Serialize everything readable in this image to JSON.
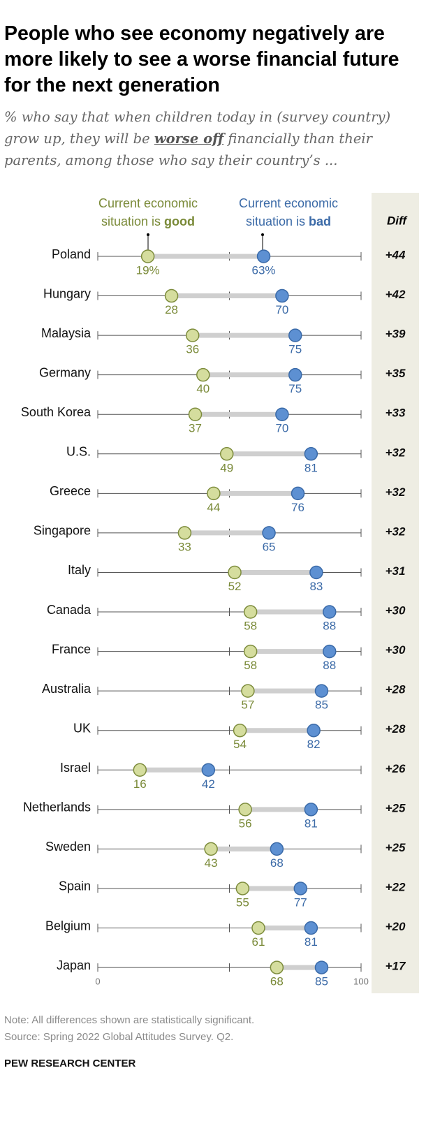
{
  "chart_data": {
    "type": "dumbbell",
    "title": "People who see economy negatively are more likely to see a worse financial future for the next generation",
    "subtitle": [
      "% who say that when children today in (survey country) grow up, they will be ",
      "worse off",
      " financially than their parents, among those who say their country’s ..."
    ],
    "categories": [
      "Poland",
      "Hungary",
      "Malaysia",
      "Germany",
      "South Korea",
      "U.S.",
      "Greece",
      "Singapore",
      "Italy",
      "Canada",
      "France",
      "Australia",
      "UK",
      "Israel",
      "Netherlands",
      "Sweden",
      "Spain",
      "Belgium",
      "Japan"
    ],
    "series": [
      {
        "name": "Current economic situation is good",
        "color": "#d5dd9e",
        "stroke": "#7d8c3c",
        "label_color": "#7a8a38",
        "values": [
          19,
          28,
          36,
          40,
          37,
          49,
          44,
          33,
          52,
          58,
          58,
          57,
          54,
          16,
          56,
          43,
          55,
          61,
          68
        ],
        "value_labels": [
          "19%",
          "28",
          "36",
          "40",
          "37",
          "49",
          "44",
          "33",
          "52",
          "58",
          "58",
          "57",
          "54",
          "16",
          "56",
          "43",
          "55",
          "61",
          "68"
        ]
      },
      {
        "name": "Current economic situation is bad",
        "color": "#5d90d2",
        "stroke": "#3a6aa8",
        "label_color": "#3b6aa7",
        "values": [
          63,
          70,
          75,
          75,
          70,
          81,
          76,
          65,
          83,
          88,
          88,
          85,
          82,
          42,
          81,
          68,
          77,
          81,
          85
        ],
        "value_labels": [
          "63%",
          "70",
          "75",
          "75",
          "70",
          "81",
          "76",
          "65",
          "83",
          "88",
          "88",
          "85",
          "82",
          "42",
          "81",
          "68",
          "77",
          "81",
          "85"
        ]
      }
    ],
    "diff_title": "Diff",
    "diff_labels": [
      "+44",
      "+42",
      "+39",
      "+35",
      "+33",
      "+32",
      "+32",
      "+32",
      "+31",
      "+30",
      "+30",
      "+28",
      "+28",
      "+26",
      "+25",
      "+25",
      "+22",
      "+20",
      "+17"
    ],
    "xlim": [
      0,
      100
    ],
    "xticks": [
      0,
      100
    ],
    "xminorticks": [
      50
    ],
    "note": "Note: All differences shown are statistically significant.",
    "source": "Source: Spring 2022 Global Attitudes Survey. Q2.",
    "org": "PEW RESEARCH CENTER"
  }
}
